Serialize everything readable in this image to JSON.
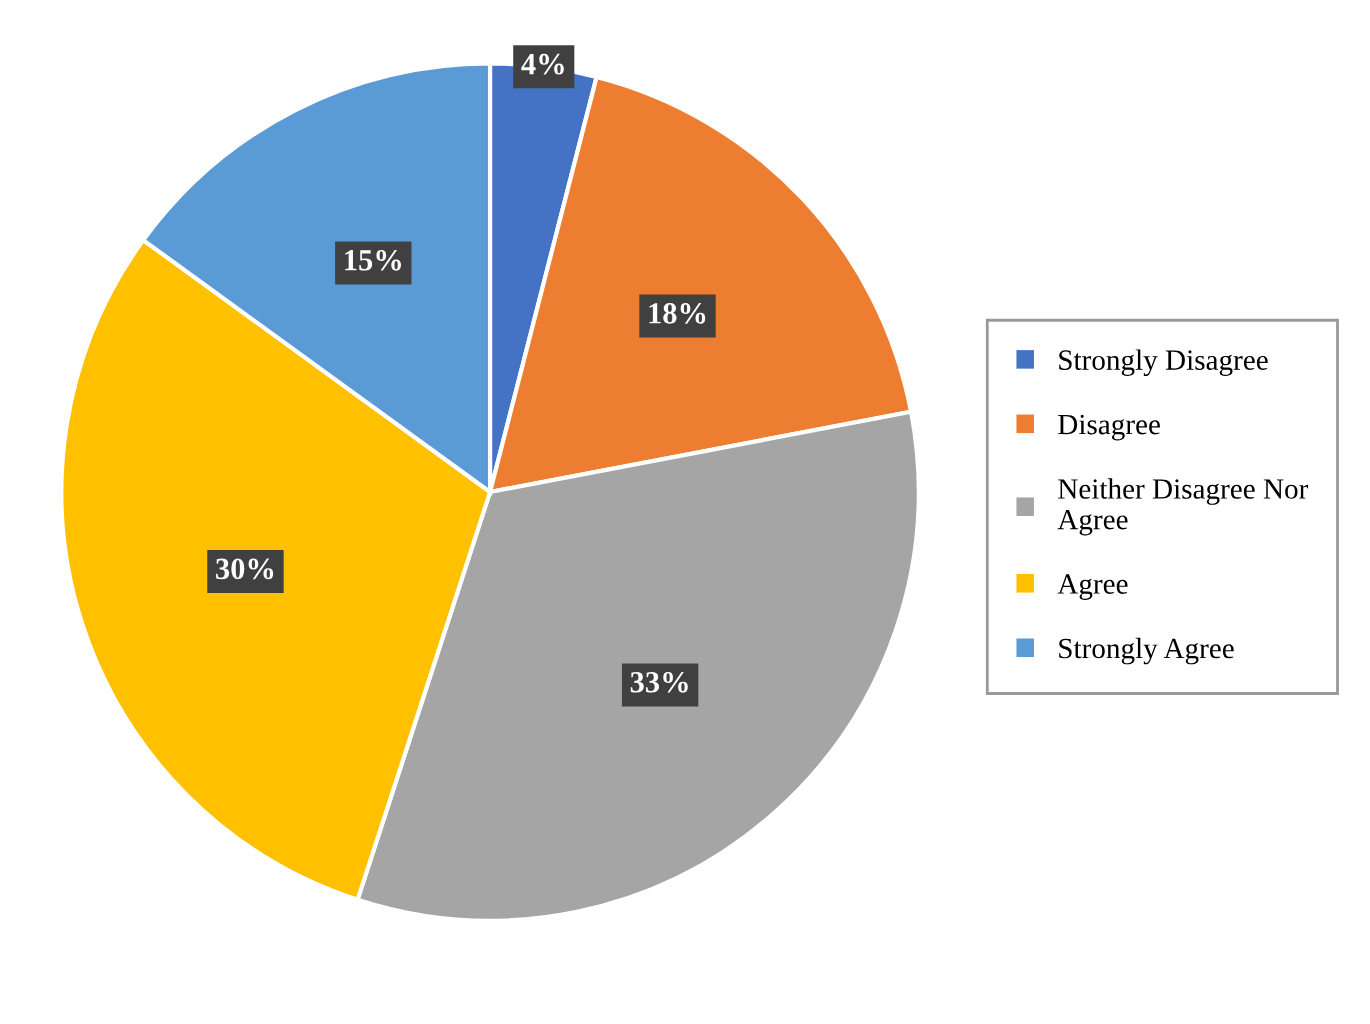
{
  "chart_data": {
    "type": "pie",
    "categories": [
      "Strongly Disagree",
      "Disagree",
      "Neither Disagree Nor Agree",
      "Agree",
      "Strongly Agree"
    ],
    "values": [
      4,
      18,
      33,
      30,
      15
    ],
    "colors": [
      "#4472c4",
      "#ed7d31",
      "#a5a5a5",
      "#ffc000",
      "#5b9bd5"
    ],
    "value_labels": [
      "4%",
      "18%",
      "33%",
      "30%",
      "15%"
    ],
    "legend": "right"
  }
}
